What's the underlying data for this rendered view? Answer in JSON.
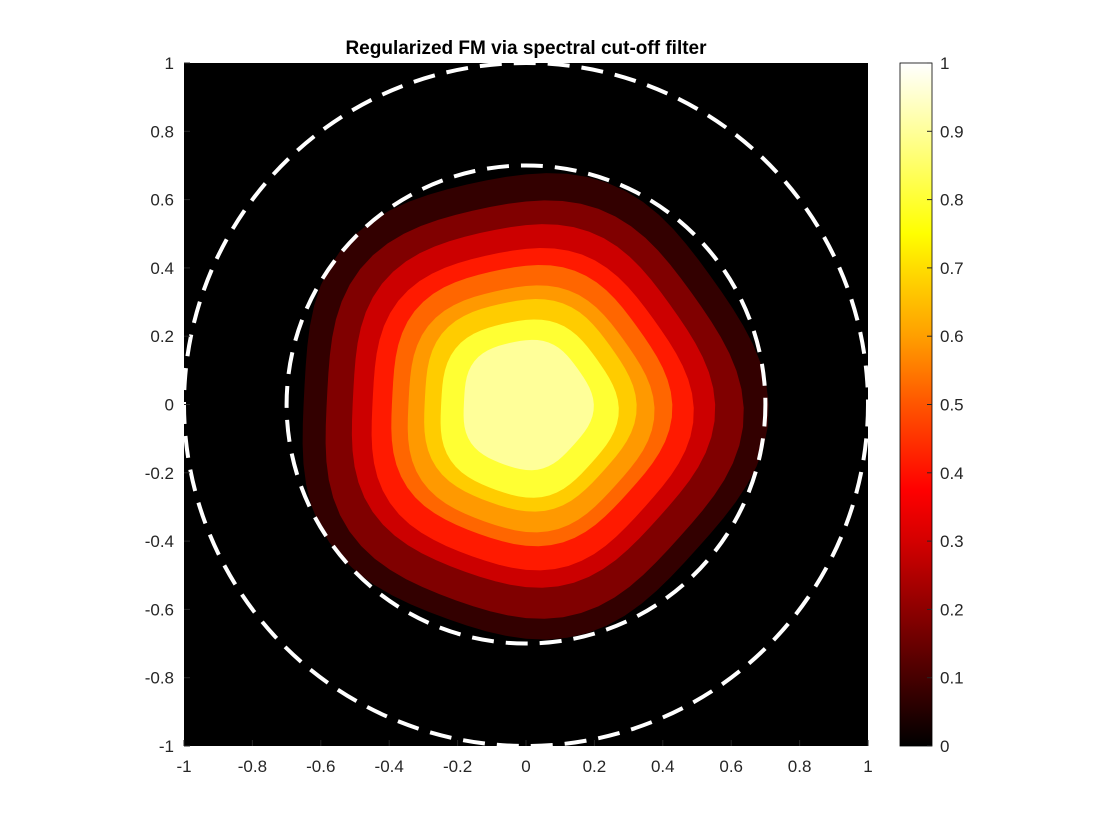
{
  "chart_data": {
    "type": "heatmap",
    "subtype": "filled-contour",
    "title": "Regularized FM via spectral cut-off filter",
    "xlabel": "",
    "ylabel": "",
    "xlim": [
      -1,
      1
    ],
    "ylim": [
      -1,
      1
    ],
    "x_ticks": [
      "-1",
      "-0.8",
      "-0.6",
      "-0.4",
      "-0.2",
      "0",
      "0.2",
      "0.4",
      "0.6",
      "0.8",
      "1"
    ],
    "y_ticks": [
      "1",
      "0.8",
      "0.6",
      "0.4",
      "0.2",
      "0",
      "-0.2",
      "-0.4",
      "-0.6",
      "-0.8",
      "-1"
    ],
    "grid": false,
    "background_color": "#000000",
    "colormap": "hot",
    "colorbar": {
      "range": [
        0,
        1
      ],
      "ticks": [
        "0",
        "0.1",
        "0.2",
        "0.3",
        "0.4",
        "0.5",
        "0.6",
        "0.7",
        "0.8",
        "0.9",
        "1"
      ],
      "placement": "right"
    },
    "contour_levels": [
      {
        "level": 0.0,
        "radius": 0.68,
        "color": "#330000"
      },
      {
        "level": 0.1,
        "radius": 0.61,
        "color": "#800000"
      },
      {
        "level": 0.2,
        "radius": 0.53,
        "color": "#cc0000"
      },
      {
        "level": 0.3,
        "radius": 0.47,
        "color": "#ff1a00"
      },
      {
        "level": 0.4,
        "radius": 0.41,
        "color": "#ff6600"
      },
      {
        "level": 0.5,
        "radius": 0.36,
        "color": "#ff9900"
      },
      {
        "level": 0.6,
        "radius": 0.31,
        "color": "#ffcc00"
      },
      {
        "level": 0.7,
        "radius": 0.26,
        "color": "#ffff33"
      },
      {
        "level": 0.8,
        "radius": 0.19,
        "color": "#ffff99"
      }
    ],
    "circles": [
      {
        "name": "inner boundary",
        "radius": 0.7,
        "color": "#ffffff",
        "style": "dashed"
      },
      {
        "name": "outer boundary",
        "radius": 1.0,
        "color": "#ffffff",
        "style": "dashed"
      }
    ]
  }
}
